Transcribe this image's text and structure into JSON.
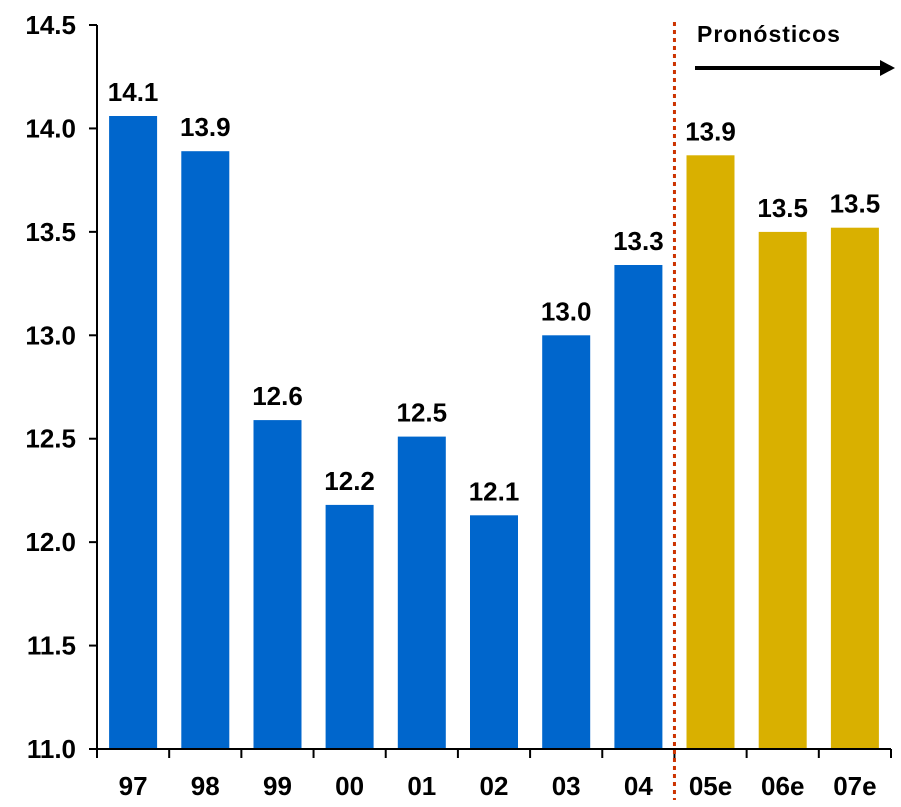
{
  "chart_data": {
    "type": "bar",
    "title": "",
    "xlabel": "",
    "ylabel": "",
    "categories": [
      "97",
      "98",
      "99",
      "00",
      "01",
      "02",
      "03",
      "04",
      "05e",
      "06e",
      "07e"
    ],
    "values": [
      14.06,
      13.89,
      12.59,
      12.18,
      12.51,
      12.13,
      13.0,
      13.34,
      13.87,
      13.5,
      13.52
    ],
    "data_labels": [
      "14.1",
      "13.9",
      "12.6",
      "12.2",
      "12.5",
      "12.1",
      "13.0",
      "13.3",
      "13.9",
      "13.5",
      "13.5"
    ],
    "forecast_start_index": 8,
    "ylim": [
      11.0,
      14.5
    ],
    "yticks": [
      11.0,
      11.5,
      12.0,
      12.5,
      13.0,
      13.5,
      14.0,
      14.5
    ],
    "ytick_labels": [
      "11.0",
      "11.5",
      "12.0",
      "12.5",
      "13.0",
      "13.5",
      "14.0",
      "14.5"
    ],
    "grid": false,
    "colors": {
      "actual": "#0066CC",
      "forecast": "#D9B000",
      "divider": "#CC3300"
    },
    "annotation": {
      "text": "Pronósticos",
      "arrow": "right"
    }
  }
}
